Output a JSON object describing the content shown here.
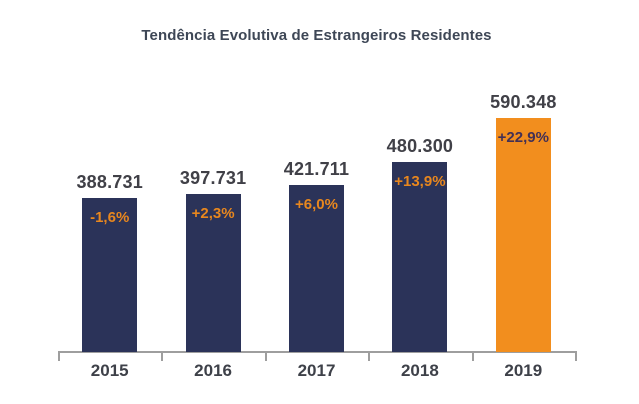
{
  "chart_data": {
    "type": "bar",
    "title": "Tendência Evolutiva de Estrangeiros Residentes",
    "categories": [
      "2015",
      "2016",
      "2017",
      "2018",
      "2019"
    ],
    "values": [
      388731,
      397731,
      421711,
      480300,
      590348
    ],
    "value_labels": [
      "388.731",
      "397.731",
      "421.711",
      "480.300",
      "590.348"
    ],
    "pct_change_labels": [
      "-1,6%",
      "+2,3%",
      "+6,0%",
      "+13,9%",
      "+22,9%"
    ],
    "series": [
      {
        "name": "Estrangeiros Residentes",
        "values": [
          388731,
          397731,
          421711,
          480300,
          590348
        ]
      }
    ],
    "xlabel": "",
    "ylabel": "",
    "ylim": [
      0,
      590348
    ],
    "grid": false,
    "legend": false,
    "colors": {
      "bar_default": "#2B3359",
      "bar_highlight": "#F28E1E",
      "bar_colors": [
        "#2B3359",
        "#2B3359",
        "#2B3359",
        "#2B3359",
        "#F28E1E"
      ],
      "pct_label_colors": [
        "#E8871E",
        "#E8871E",
        "#E8871E",
        "#E8871E",
        "#433055"
      ],
      "value_label_color": "#404047",
      "category_label_color": "#3E4149",
      "title_color": "#3E4756",
      "axis_color": "#9E9E9E"
    }
  }
}
